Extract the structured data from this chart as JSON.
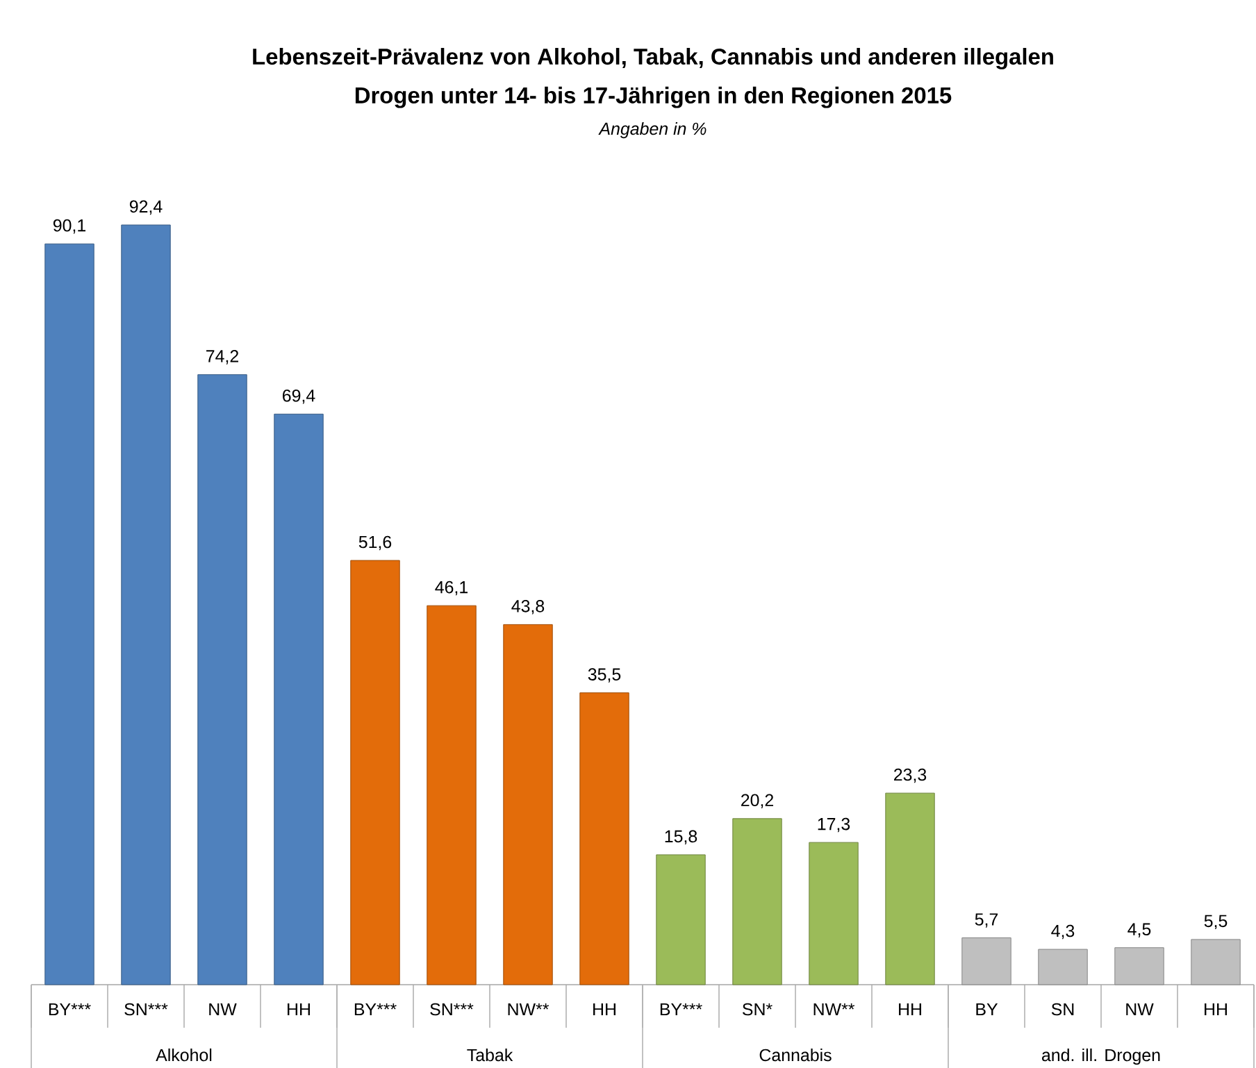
{
  "chart_data": {
    "type": "bar",
    "title": "Lebenszeit-Prävalenz von Alkohol, Tabak, Cannabis und anderen illegalen Drogen unter 14- bis 17-Jährigen in den Regionen 2015",
    "subtitle": "Angaben in %",
    "categories": [
      "BY***",
      "SN***",
      "NW",
      "HH",
      "BY***",
      "SN***",
      "NW**",
      "HH",
      "BY***",
      "SN*",
      "NW**",
      "HH",
      "BY",
      "SN",
      "NW",
      "HH"
    ],
    "series": [
      {
        "color": "#4f81bd",
        "values": [
          90.1,
          92.4,
          74.2,
          69.4,
          null,
          null,
          null,
          null,
          null,
          null,
          null,
          null,
          null,
          null,
          null,
          null
        ],
        "value_labels": [
          "90,1",
          "92,4",
          "74,2",
          "69,4",
          null,
          null,
          null,
          null,
          null,
          null,
          null,
          null,
          null,
          null,
          null,
          null
        ]
      },
      {
        "color": "#e36c0a",
        "values": [
          null,
          null,
          null,
          null,
          51.6,
          46.1,
          43.8,
          35.5,
          null,
          null,
          null,
          null,
          null,
          null,
          null,
          null
        ],
        "value_labels": [
          null,
          null,
          null,
          null,
          "51,6",
          "46,1",
          "43,8",
          "35,5",
          null,
          null,
          null,
          null,
          null,
          null,
          null,
          null
        ]
      },
      {
        "color": "#9bbb59",
        "values": [
          null,
          null,
          null,
          null,
          null,
          null,
          null,
          null,
          15.8,
          20.2,
          17.3,
          23.3,
          null,
          null,
          null,
          null
        ],
        "value_labels": [
          null,
          null,
          null,
          null,
          null,
          null,
          null,
          null,
          "15,8",
          "20,2",
          "17,3",
          "23,3",
          null,
          null,
          null,
          null
        ]
      },
      {
        "color": "#bfbfbf",
        "values": [
          null,
          null,
          null,
          null,
          null,
          null,
          null,
          null,
          null,
          null,
          null,
          null,
          5.7,
          4.3,
          4.5,
          5.5
        ],
        "value_labels": [
          null,
          null,
          null,
          null,
          null,
          null,
          null,
          null,
          null,
          null,
          null,
          null,
          "5,7",
          "4,3",
          "4,5",
          "5,5"
        ]
      }
    ],
    "annotations": [
      "Alkohol",
      "Tabak",
      "Cannabis",
      "and. ill. Drogen"
    ]
  }
}
